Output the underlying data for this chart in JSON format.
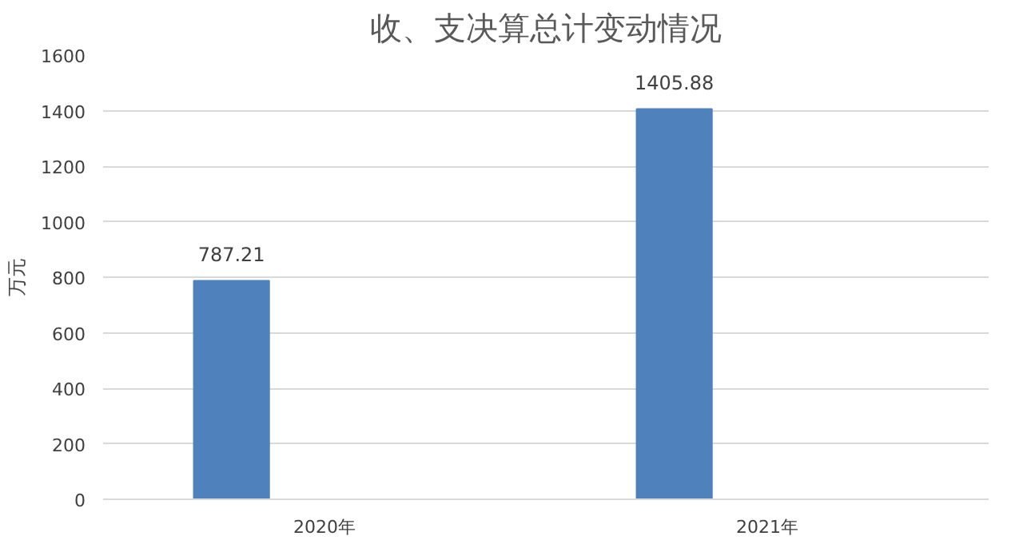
{
  "chart_data": {
    "type": "bar",
    "title": "收、支决算总计变动情况",
    "ylabel": "万元",
    "categories": [
      "2020年",
      "2021年"
    ],
    "series": [
      {
        "color": "#4f81bd",
        "values": [
          787.21,
          1405.88
        ]
      }
    ],
    "ylim": [
      0,
      1600
    ],
    "yticks": [
      0,
      200,
      400,
      600,
      800,
      1000,
      1200,
      1400,
      1600
    ],
    "grid": "y",
    "data_labels": true
  }
}
